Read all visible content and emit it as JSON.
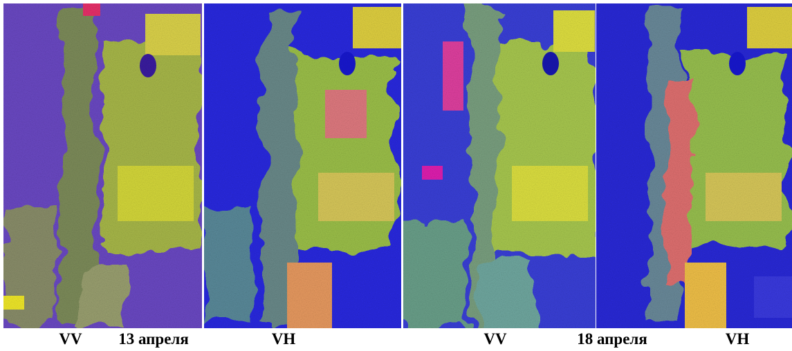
{
  "left_pair": {
    "first": "VV",
    "date": "13 апреля",
    "second": "VH"
  },
  "right_pair": {
    "first": "VV",
    "date": "18 апреля",
    "second": "VH"
  }
}
